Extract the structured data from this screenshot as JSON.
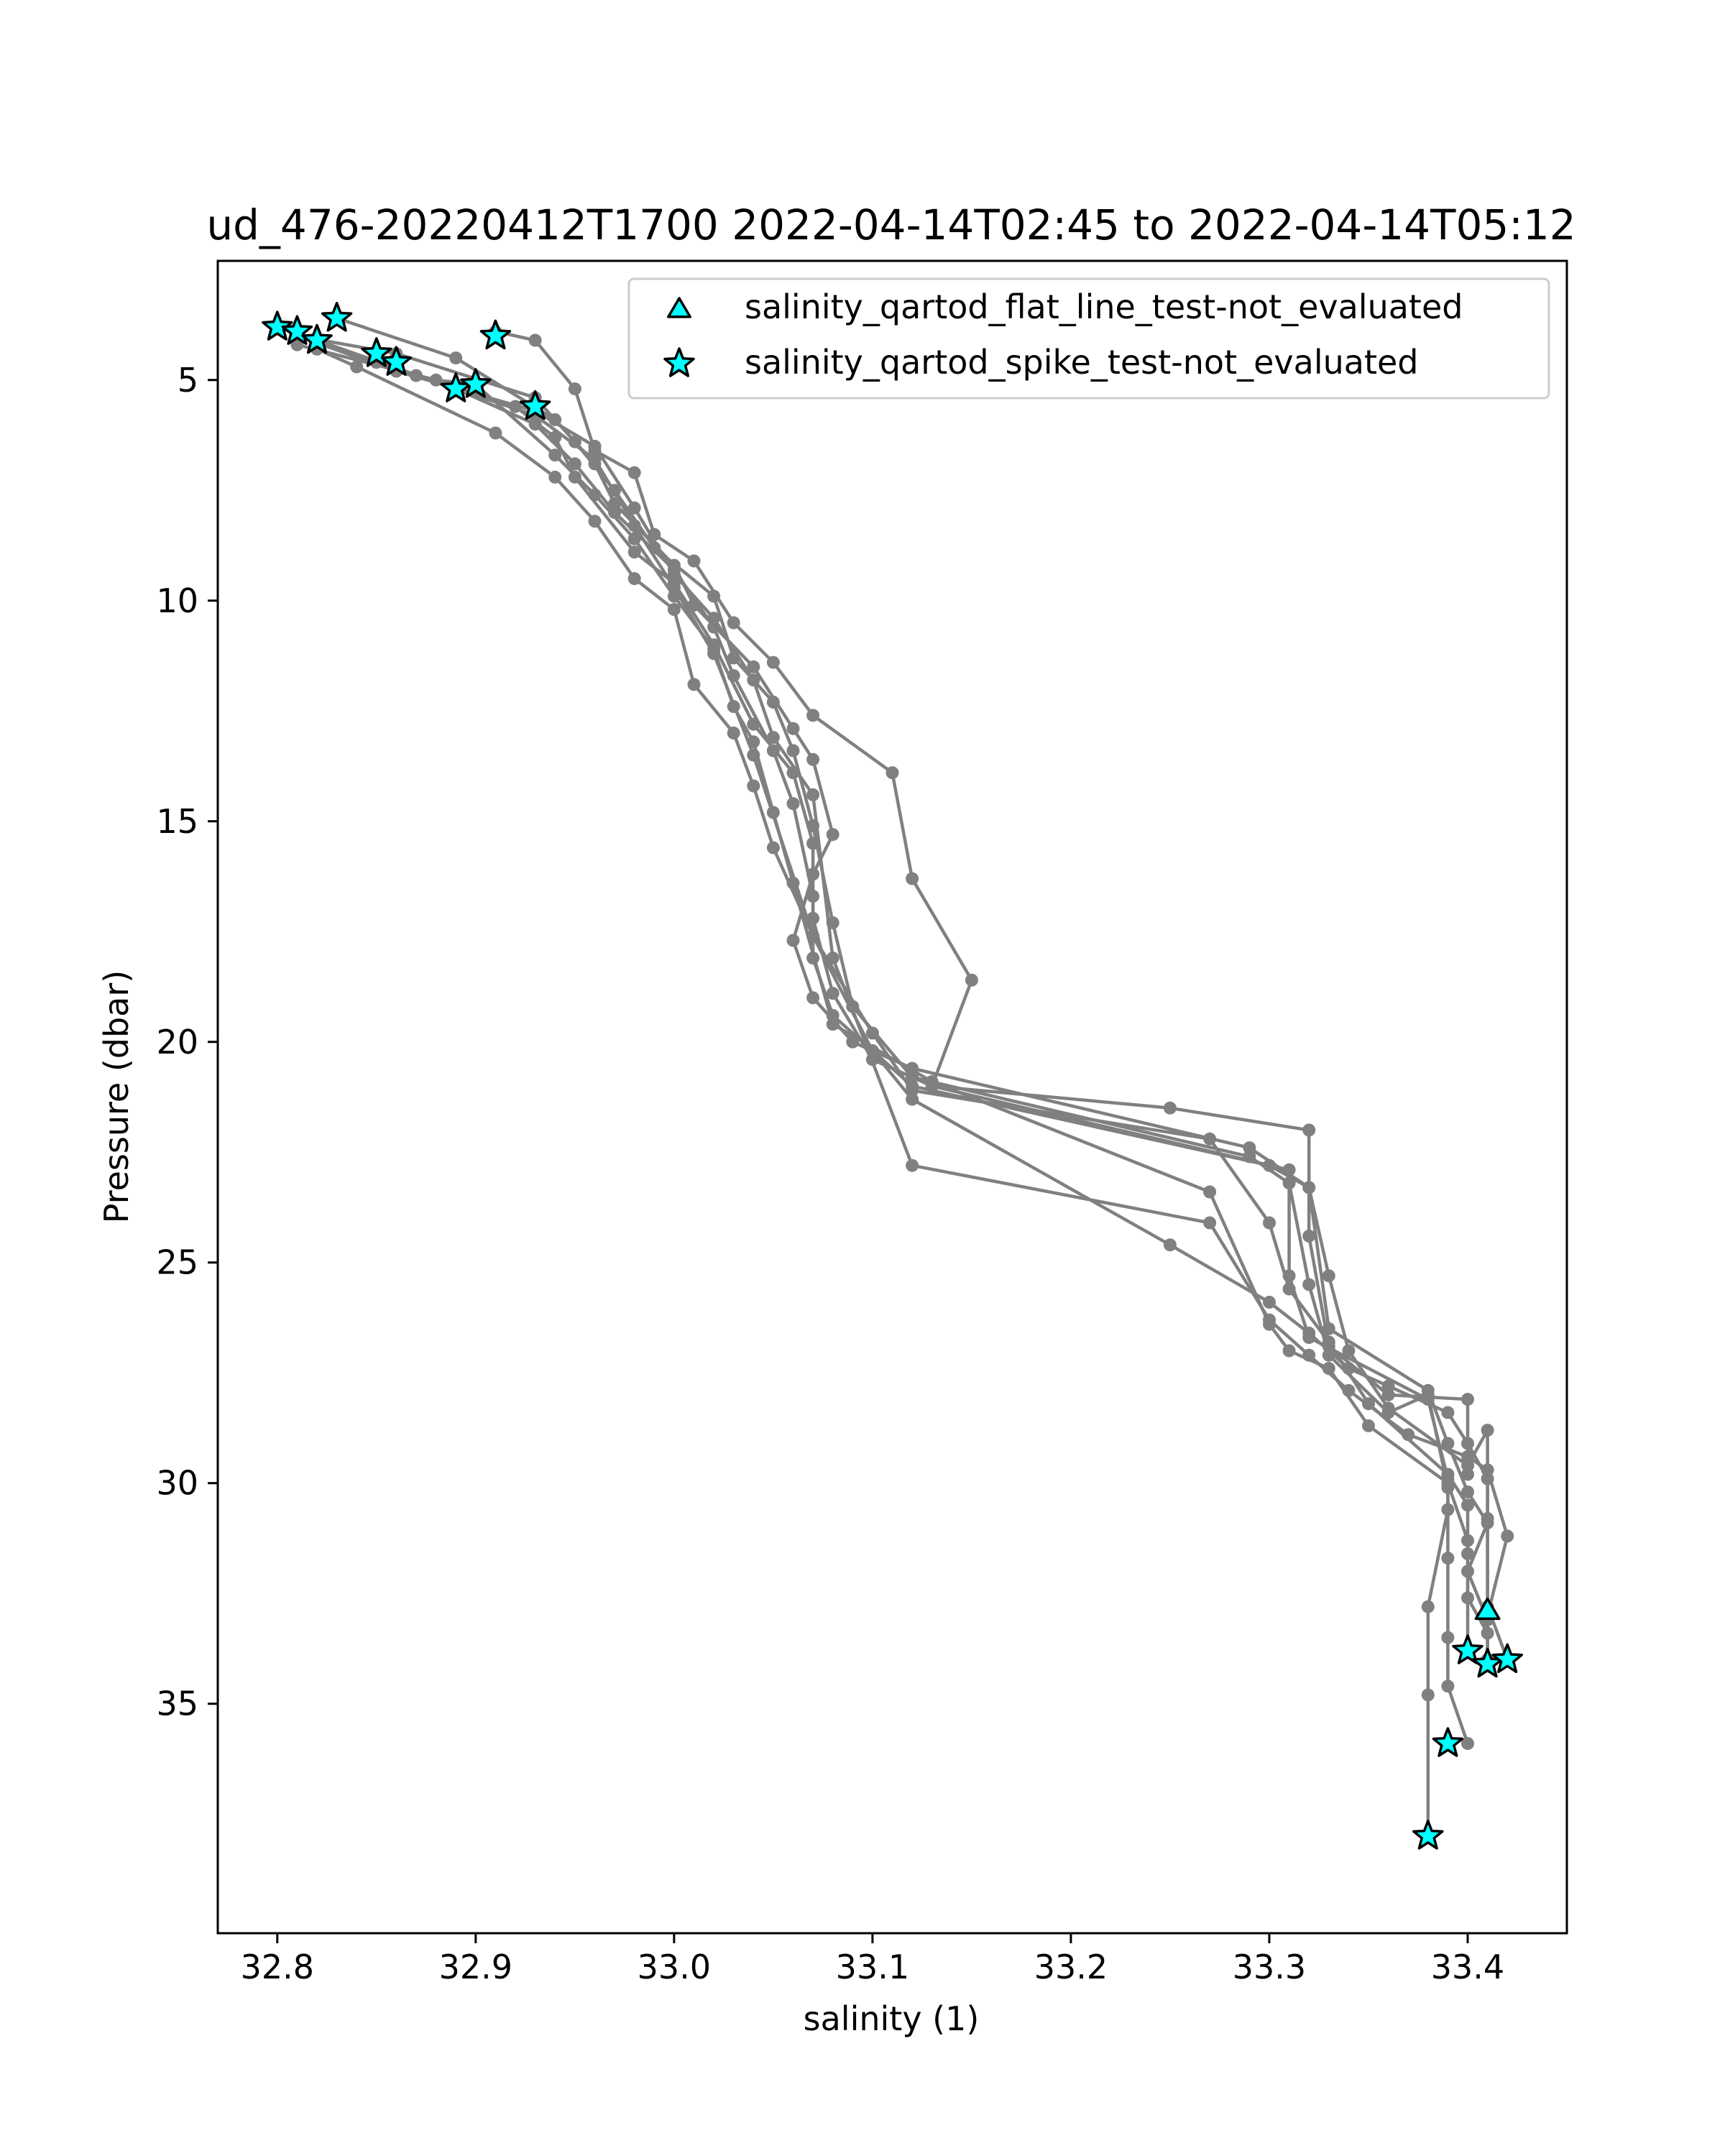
{
  "chart_data": {
    "type": "line",
    "title": "ud_476-20220412T1700 2022-04-14T02:45 to 2022-04-14T05:12",
    "xlabel": "salinity (1)",
    "ylabel": "Pressure (dbar)",
    "xlim": [
      32.77,
      33.45
    ],
    "ylim": [
      40.2,
      2.3
    ],
    "y_inverted": true,
    "xticks": [
      32.8,
      32.9,
      33.0,
      33.1,
      33.2,
      33.3,
      33.4
    ],
    "xtick_labels": [
      "32.8",
      "32.9",
      "33.0",
      "33.1",
      "33.2",
      "33.3",
      "33.4"
    ],
    "yticks": [
      5,
      10,
      15,
      20,
      25,
      30,
      35
    ],
    "ytick_labels": [
      "5",
      "10",
      "15",
      "20",
      "25",
      "30",
      "35"
    ],
    "grid": false,
    "legend_position": "top-right",
    "legend": [
      {
        "label": "salinity_qartod_flat_line_test-not_evaluated",
        "marker": "triangle",
        "color": "#00ffff"
      },
      {
        "label": "salinity_qartod_spike_test-not_evaluated",
        "marker": "star",
        "color": "#00ffff"
      }
    ],
    "line_color": "#808080",
    "series": [
      {
        "x": [
          32.91,
          32.93,
          32.95,
          32.96,
          32.98,
          32.99,
          33.01,
          33.03,
          33.05,
          33.07,
          33.11,
          33.12,
          33.15,
          33.13,
          33.25,
          33.32,
          33.32,
          33.33,
          33.36,
          33.4,
          33.4
        ],
        "y": [
          3.9,
          4.1,
          5.2,
          6.6,
          7.1,
          8.5,
          9.1,
          10.5,
          11.4,
          12.6,
          13.9,
          16.3,
          18.6,
          21.0,
          21.5,
          22.0,
          24.4,
          26.9,
          28.0,
          28.1,
          29.8
        ]
      },
      {
        "x": [
          32.83,
          32.89,
          32.94,
          32.96,
          32.97,
          33.0,
          33.01,
          33.04,
          33.06,
          33.07,
          33.08,
          33.07,
          33.06,
          33.07,
          33.09,
          33.12,
          33.29,
          33.32,
          33.33,
          33.38,
          33.39,
          33.4,
          33.41,
          33.4,
          33.41,
          33.41
        ],
        "y": [
          3.6,
          4.5,
          5.9,
          6.9,
          7.8,
          9.2,
          10.1,
          11.5,
          12.9,
          13.6,
          15.3,
          16.2,
          17.7,
          19.0,
          20.0,
          20.6,
          22.4,
          23.3,
          26.5,
          27.9,
          29.1,
          30.2,
          30.9,
          32.0,
          33.1,
          34.0
        ]
      },
      {
        "x": [
          32.8,
          32.85,
          32.92,
          32.94,
          32.95,
          32.98,
          33.0,
          33.02,
          33.04,
          33.06,
          33.07,
          33.07,
          33.08,
          33.1,
          33.13,
          33.31,
          33.31,
          33.32,
          33.38,
          33.39,
          33.39,
          33.38,
          33.38,
          33.38
        ],
        "y": [
          3.8,
          4.6,
          5.6,
          6.3,
          7.2,
          8.9,
          9.6,
          11.0,
          12.8,
          13.9,
          15.5,
          17.2,
          18.9,
          20.4,
          21.0,
          22.9,
          25.3,
          26.7,
          28.1,
          29.9,
          30.6,
          32.8,
          34.8,
          38.0
        ]
      },
      {
        "x": [
          32.81,
          32.86,
          32.93,
          32.95,
          32.97,
          32.99,
          33.02,
          33.03,
          33.05,
          33.06,
          33.07,
          33.08,
          33.09,
          33.12,
          33.29,
          33.31,
          33.32,
          33.33,
          33.36,
          33.38,
          33.39,
          33.39,
          33.39,
          33.39,
          33.4
        ],
        "y": [
          4.0,
          4.4,
          5.4,
          6.4,
          7.5,
          8.8,
          9.9,
          11.3,
          12.3,
          13.4,
          15.1,
          17.3,
          19.2,
          20.8,
          22.6,
          23.2,
          25.5,
          27.1,
          28.4,
          28.0,
          30.1,
          31.7,
          33.5,
          34.6,
          35.9
        ]
      },
      {
        "x": [
          32.82,
          32.89,
          32.93,
          32.95,
          32.97,
          33.0,
          33.02,
          33.03,
          33.05,
          33.06,
          33.07,
          33.07,
          33.08,
          33.12,
          33.3,
          33.32,
          33.33,
          33.34,
          33.36,
          33.4,
          33.41,
          33.41,
          33.41,
          33.42
        ],
        "y": [
          4.1,
          5.2,
          6.0,
          6.9,
          8.0,
          9.3,
          10.6,
          11.7,
          13.4,
          14.6,
          16.7,
          18.1,
          19.4,
          21.0,
          22.8,
          23.3,
          25.3,
          27.0,
          28.3,
          29.6,
          28.8,
          30.8,
          32.8,
          34.0
        ]
      },
      {
        "x": [
          32.81,
          32.88,
          32.9,
          32.94,
          32.96,
          32.98,
          33.0,
          33.02,
          33.03,
          33.04,
          33.05,
          33.06,
          33.08,
          33.13,
          33.27,
          33.3,
          33.31,
          33.33,
          33.35,
          33.39,
          33.4,
          33.4,
          33.41,
          33.41
        ],
        "y": [
          4.2,
          5.0,
          5.1,
          6.7,
          7.6,
          8.6,
          9.9,
          11.1,
          12.4,
          13.2,
          14.8,
          16.4,
          19.6,
          20.9,
          23.4,
          26.4,
          27.0,
          27.4,
          28.7,
          30.0,
          31.3,
          32.6,
          33.4,
          34.1
        ]
      },
      {
        "x": [
          32.82,
          32.84,
          32.91,
          32.94,
          32.96,
          32.98,
          33.0,
          33.01,
          33.03,
          33.04,
          33.05,
          33.07,
          33.1,
          33.12,
          33.27,
          33.3,
          33.31,
          33.33,
          33.35,
          33.39,
          33.4,
          33.4,
          33.4
        ],
        "y": [
          4.3,
          4.7,
          6.2,
          7.2,
          8.2,
          9.5,
          10.2,
          11.9,
          13.0,
          14.2,
          15.6,
          17.6,
          19.8,
          21.1,
          22.2,
          24.1,
          25.6,
          26.8,
          28.2,
          29.8,
          30.5,
          31.6,
          33.8
        ]
      },
      {
        "x": [
          32.81,
          32.86,
          32.93,
          32.96,
          32.98,
          33.0,
          33.02,
          33.04,
          33.05,
          33.07,
          33.08,
          33.12,
          33.27,
          33.3,
          33.32,
          33.34,
          33.37,
          33.4,
          33.41,
          33.42,
          33.41
        ],
        "y": [
          4.0,
          4.8,
          5.7,
          6.5,
          7.9,
          9.4,
          10.4,
          11.8,
          13.1,
          14.4,
          18.1,
          22.8,
          24.1,
          26.3,
          27.1,
          27.9,
          28.9,
          29.4,
          29.7,
          31.2,
          33.0
        ]
      },
      {
        "x": [
          32.82,
          32.87,
          32.93,
          32.96,
          32.98,
          33.0,
          33.02,
          33.04,
          33.07,
          33.1,
          33.12,
          33.25,
          33.3,
          33.32,
          33.34,
          33.36,
          33.39,
          33.4,
          33.41,
          33.41
        ],
        "y": [
          4.1,
          4.9,
          5.8,
          6.8,
          8.3,
          9.7,
          11.2,
          13.5,
          17.6,
          20.2,
          21.3,
          24.6,
          25.9,
          26.6,
          27.4,
          27.8,
          28.4,
          29.1,
          29.9,
          33.0
        ]
      }
    ],
    "flat_line_flags": {
      "x": [
        33.41
      ],
      "y": [
        32.9
      ]
    },
    "spike_flags": {
      "x": [
        32.8,
        32.81,
        32.83,
        32.82,
        32.91,
        32.85,
        32.86,
        32.89,
        32.9,
        32.93,
        33.4,
        33.41,
        33.42,
        33.39,
        33.38
      ],
      "y": [
        3.8,
        3.9,
        3.6,
        4.1,
        4.0,
        4.4,
        4.6,
        5.2,
        5.1,
        5.6,
        33.8,
        34.1,
        34.0,
        35.9,
        38.0
      ]
    }
  }
}
